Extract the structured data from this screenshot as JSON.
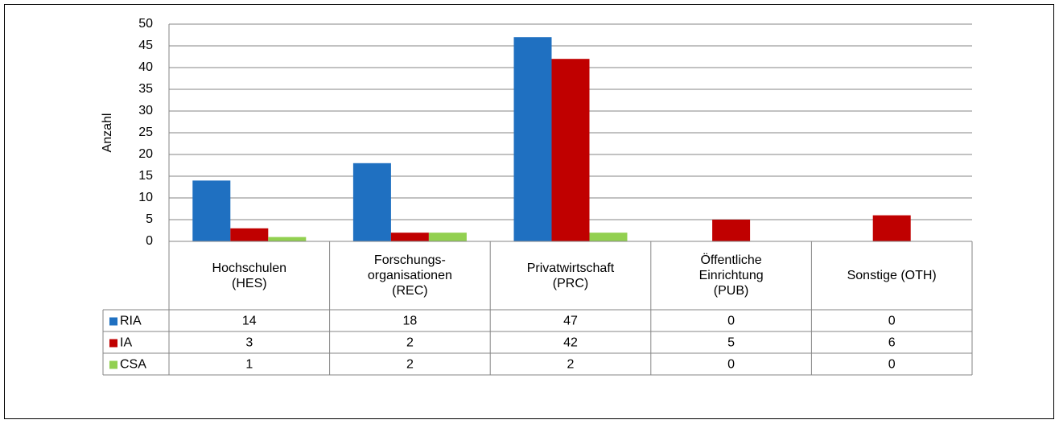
{
  "chart_data": {
    "type": "bar",
    "y_label": "Anzahl",
    "categories": [
      "Hochschulen\n(HES)",
      "Forschungs-\norganisationen\n(REC)",
      "Privatwirtschaft\n(PRC)",
      "Öffentliche\nEinrichtung\n(PUB)",
      "Sonstige (OTH)"
    ],
    "series": [
      {
        "name": "RIA",
        "color": "#1f70c1",
        "values": [
          14,
          18,
          47,
          0,
          0
        ]
      },
      {
        "name": "IA",
        "color": "#c00000",
        "values": [
          3,
          2,
          42,
          5,
          6
        ]
      },
      {
        "name": "CSA",
        "color": "#92d050",
        "values": [
          1,
          2,
          2,
          0,
          0
        ]
      }
    ],
    "ylim": [
      0,
      50
    ],
    "yticks": [
      0,
      5,
      10,
      15,
      20,
      25,
      30,
      35,
      40,
      45,
      50
    ],
    "grid": true
  }
}
